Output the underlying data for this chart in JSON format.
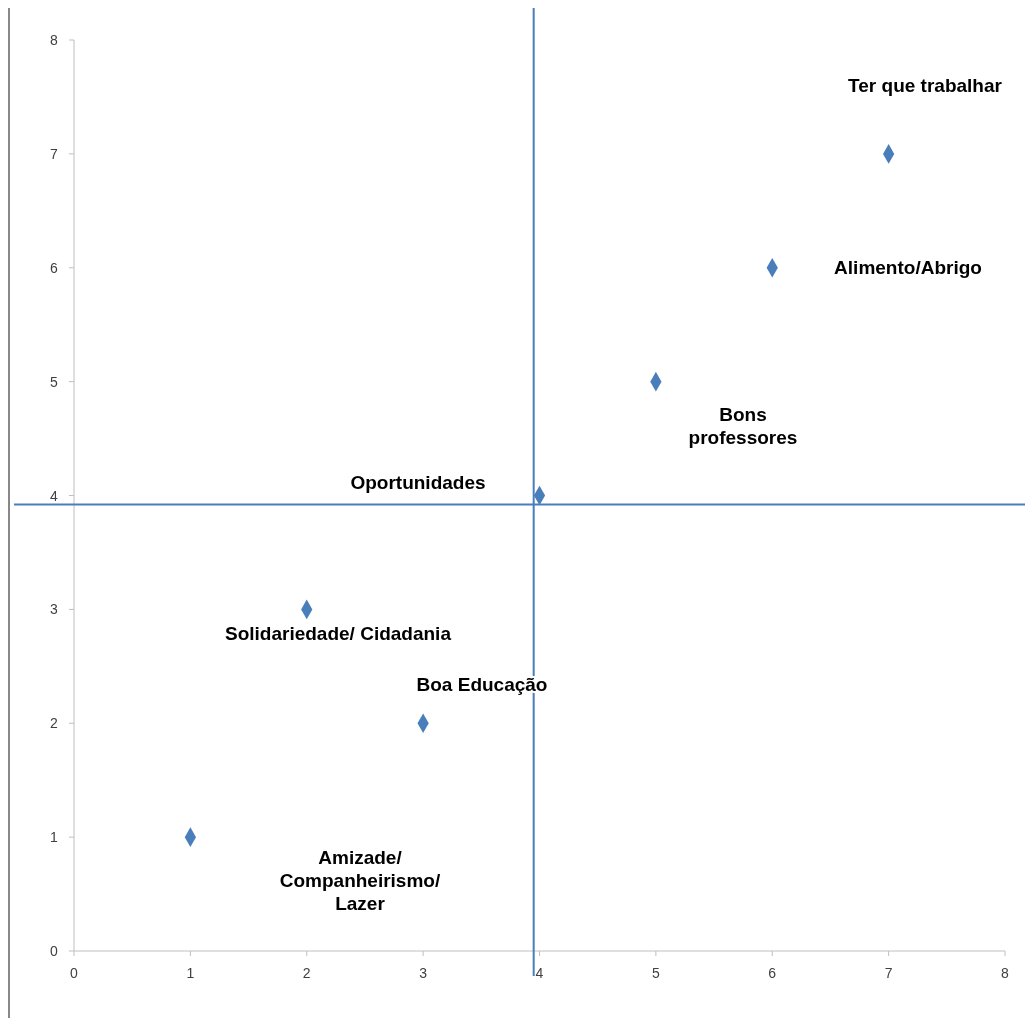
{
  "chart_data": {
    "type": "scatter",
    "x": [
      1,
      2,
      3,
      4,
      5,
      6,
      7
    ],
    "values": [
      1,
      3,
      2,
      4,
      5,
      6,
      7
    ],
    "color": "#4a7ebb",
    "marker": "diamond",
    "xlim": [
      0,
      8
    ],
    "ylim": [
      0,
      8
    ],
    "xticks": [
      0,
      1,
      2,
      3,
      4,
      5,
      6,
      7,
      8
    ],
    "yticks": [
      0,
      1,
      2,
      3,
      4,
      5,
      6,
      7,
      8
    ],
    "grid": false,
    "ref_lines": [
      {
        "axis": "x",
        "value": 3.95,
        "color": "#4a7ebb"
      },
      {
        "axis": "y",
        "value": 3.92,
        "color": "#4a7ebb"
      }
    ],
    "annotations": [
      "Amizade/\nCompanheirismo/\nLazer",
      "Solidariedade/ Cidadania",
      "Boa Educação",
      "Oportunidades",
      "Bons\nprofessores",
      "Alimento/Abrigo",
      "Ter que trabalhar"
    ]
  }
}
